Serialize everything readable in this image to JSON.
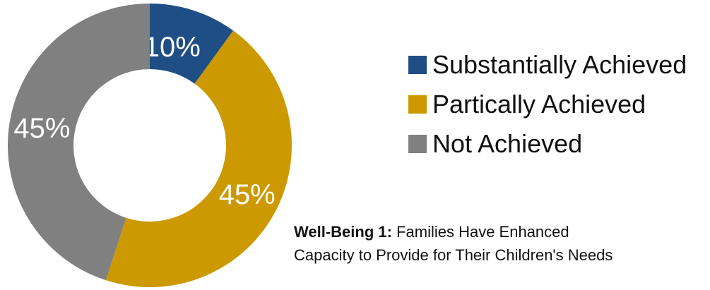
{
  "chart_data": {
    "type": "pie",
    "variant": "donut",
    "title": "",
    "categories": [
      "Substantially Achieved",
      "Partically Achieved",
      "Not Achieved"
    ],
    "values": [
      10,
      45,
      45
    ],
    "labels": [
      "10%",
      "45%",
      "45%"
    ],
    "colors": [
      "#1F4E85",
      "#CC9900",
      "#808080"
    ],
    "legend_position": "right"
  },
  "legend": {
    "items": [
      {
        "label": "Substantially Achieved",
        "color": "#1F4E85"
      },
      {
        "label": "Partically Achieved",
        "color": "#CC9900"
      },
      {
        "label": "Not Achieved",
        "color": "#808080"
      }
    ]
  },
  "caption": {
    "bold": "Well-Being 1:",
    "line1": " Families Have Enhanced",
    "line2": "Capacity to Provide for Their Children's Needs"
  }
}
